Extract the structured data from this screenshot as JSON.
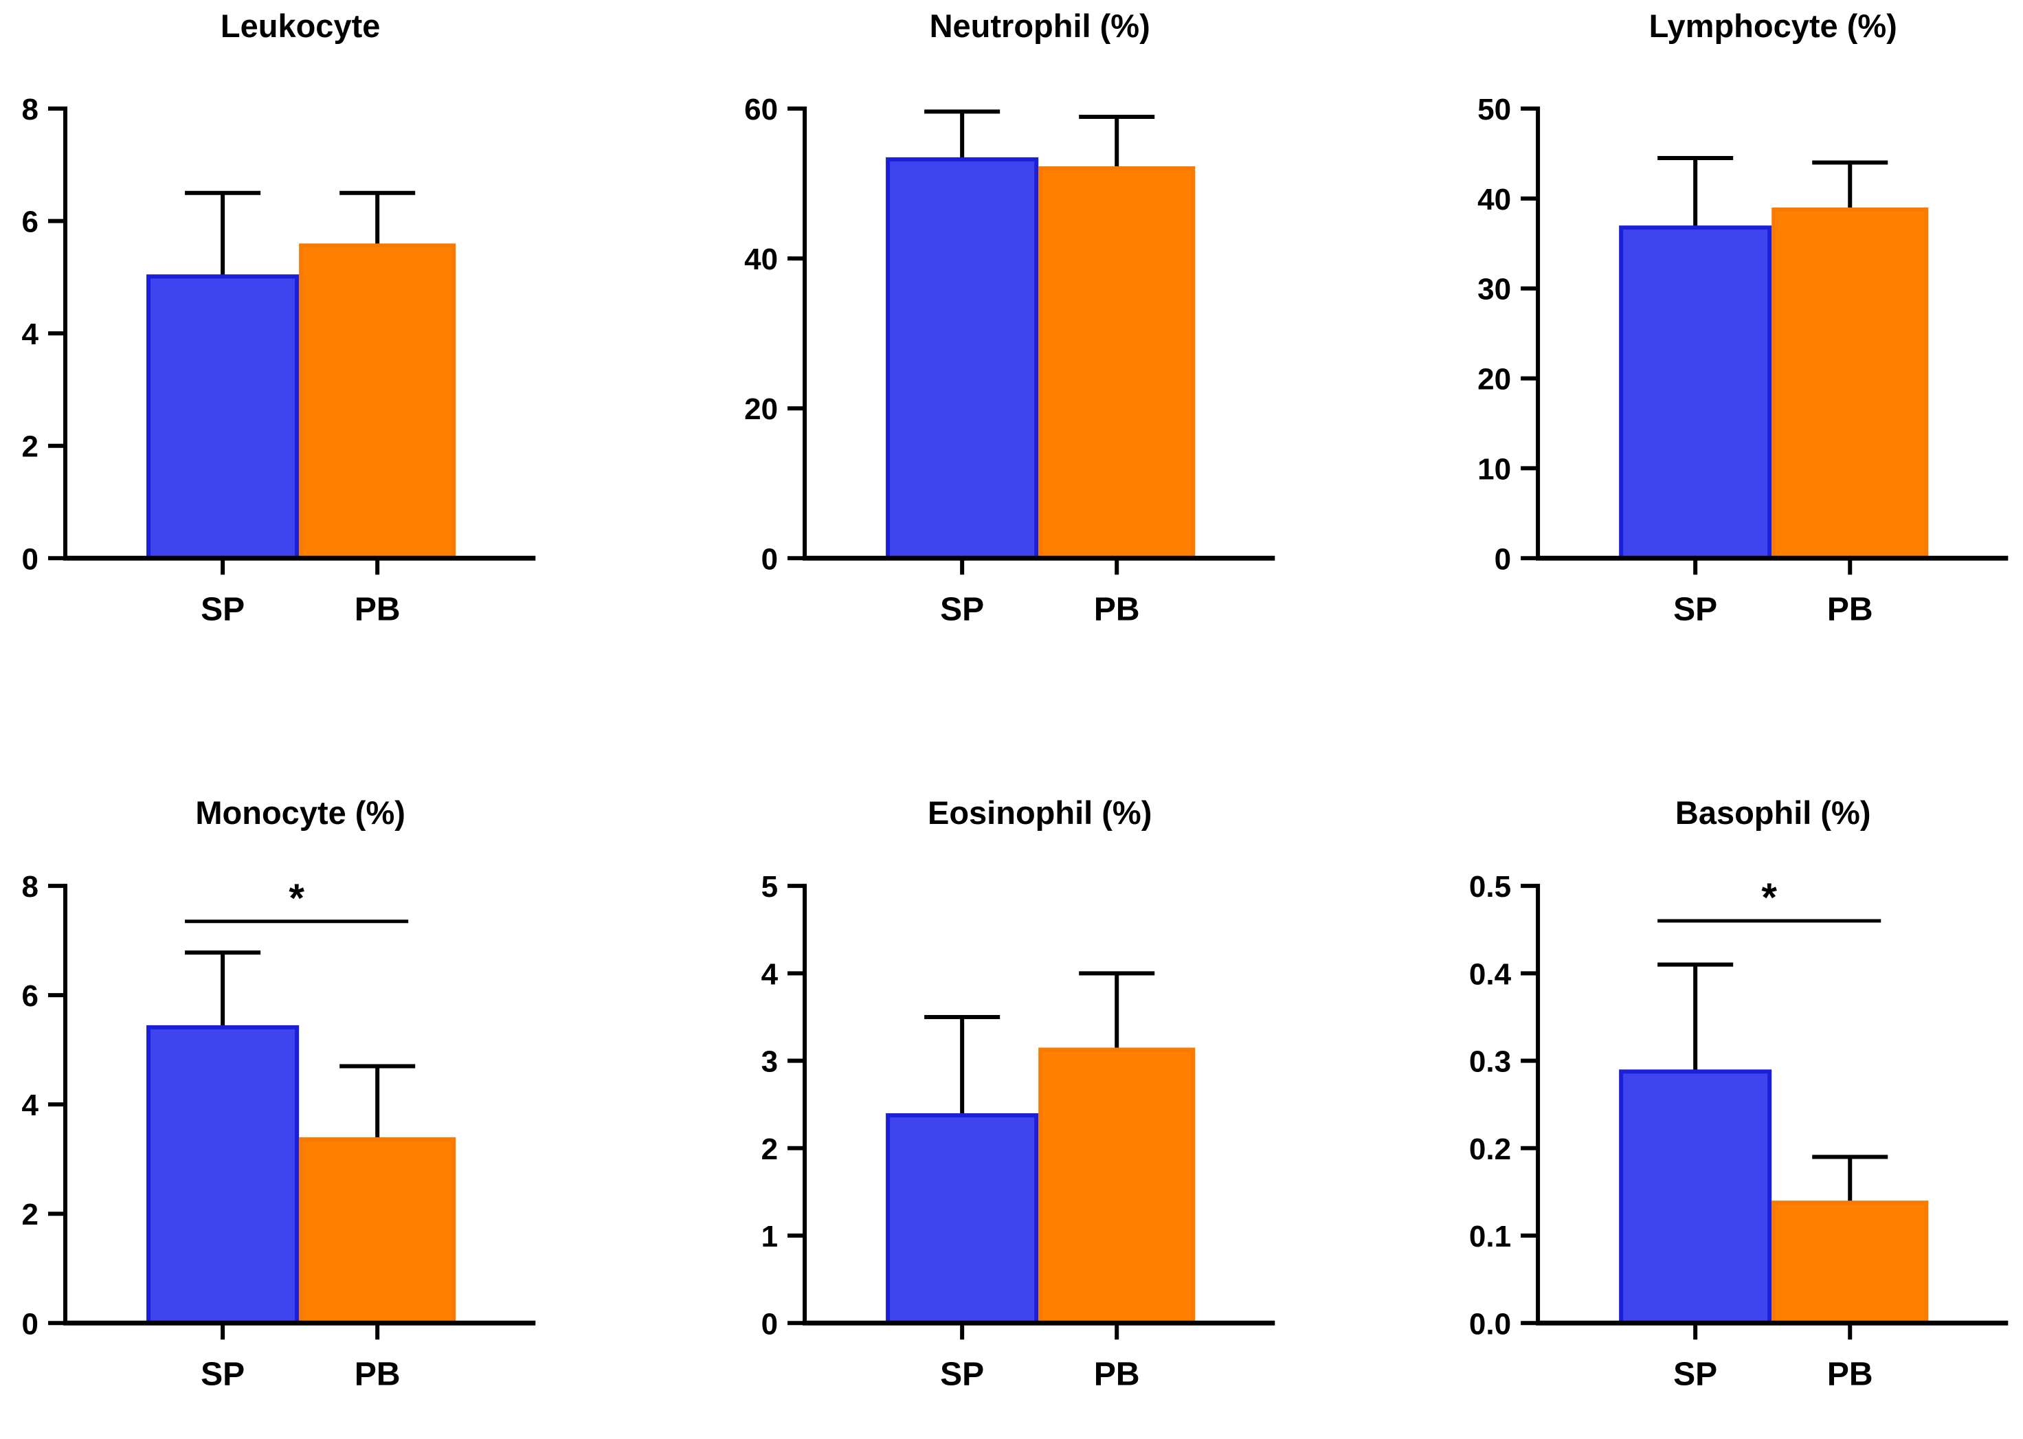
{
  "figure": {
    "group_labels": [
      "SP",
      "PB"
    ],
    "colors": {
      "sp_fill": "#3E45EE",
      "sp_border": "#1B1FD8",
      "pb_fill": "#FF7F00",
      "pb_border": "#F87A00",
      "axis": "#000000",
      "error_bar": "#000000",
      "background": "#FFFFFF"
    },
    "significance_symbol": "*"
  },
  "chart_data": [
    {
      "type": "bar",
      "title": "Leukocyte",
      "categories": [
        "SP",
        "PB"
      ],
      "means": [
        5.05,
        5.6
      ],
      "error_tops": [
        6.5,
        6.5
      ],
      "ylim": [
        0,
        8
      ],
      "yticks": [
        0,
        2,
        4,
        6,
        8
      ],
      "ytick_labels": [
        "0",
        "2",
        "4",
        "6",
        "8"
      ],
      "grid": "off",
      "legend": "none",
      "significance": null
    },
    {
      "type": "bar",
      "title": "Neutrophil (%)",
      "categories": [
        "SP",
        "PB"
      ],
      "means": [
        53.5,
        52.3
      ],
      "error_tops": [
        59.6,
        58.9
      ],
      "ylim": [
        0,
        60
      ],
      "yticks": [
        0,
        20,
        40,
        60
      ],
      "ytick_labels": [
        "0",
        "20",
        "40",
        "60"
      ],
      "grid": "off",
      "legend": "none",
      "significance": null
    },
    {
      "type": "bar",
      "title": "Lymphocyte (%)",
      "categories": [
        "SP",
        "PB"
      ],
      "means": [
        37.0,
        39.0
      ],
      "error_tops": [
        44.5,
        44.0
      ],
      "ylim": [
        0,
        50
      ],
      "yticks": [
        0,
        10,
        20,
        30,
        40,
        50
      ],
      "ytick_labels": [
        "0",
        "10",
        "20",
        "30",
        "40",
        "50"
      ],
      "grid": "off",
      "legend": "none",
      "significance": null
    },
    {
      "type": "bar",
      "title": "Monocyte (%)",
      "categories": [
        "SP",
        "PB"
      ],
      "means": [
        5.45,
        3.4
      ],
      "error_tops": [
        6.78,
        4.7
      ],
      "ylim": [
        0,
        8
      ],
      "yticks": [
        0,
        2,
        4,
        6,
        8
      ],
      "ytick_labels": [
        "0",
        "2",
        "4",
        "6",
        "8"
      ],
      "grid": "off",
      "legend": "none",
      "significance": {
        "label": "*",
        "y_value": 7.35
      }
    },
    {
      "type": "bar",
      "title": "Eosinophil (%)",
      "categories": [
        "SP",
        "PB"
      ],
      "means": [
        2.4,
        3.15
      ],
      "error_tops": [
        3.5,
        4.0
      ],
      "ylim": [
        0,
        5
      ],
      "yticks": [
        0,
        1,
        2,
        3,
        4,
        5
      ],
      "ytick_labels": [
        "0",
        "1",
        "2",
        "3",
        "4",
        "5"
      ],
      "grid": "off",
      "legend": "none",
      "significance": null
    },
    {
      "type": "bar",
      "title": "Basophil (%)",
      "categories": [
        "SP",
        "PB"
      ],
      "means": [
        0.29,
        0.14
      ],
      "error_tops": [
        0.41,
        0.19
      ],
      "ylim": [
        0,
        0.5
      ],
      "yticks": [
        0,
        0.1,
        0.2,
        0.3,
        0.4,
        0.5
      ],
      "ytick_labels": [
        "0.0",
        "0.1",
        "0.2",
        "0.3",
        "0.4",
        "0.5"
      ],
      "grid": "off",
      "legend": "none",
      "significance": {
        "label": "*",
        "y_value": 0.46
      }
    }
  ]
}
